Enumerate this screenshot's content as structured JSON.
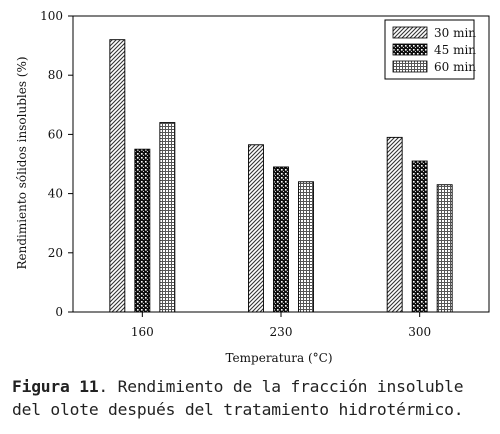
{
  "chart_data": {
    "type": "bar",
    "xlabel": "Temperatura (°C)",
    "ylabel": "Rendimiento sólidos insolubles (%)",
    "ylim": [
      0,
      100
    ],
    "yticks": [
      0,
      20,
      40,
      60,
      80,
      100
    ],
    "categories": [
      "160",
      "230",
      "300"
    ],
    "series": [
      {
        "name": "30 min",
        "values": [
          92,
          56.5,
          59
        ],
        "pattern": "diagonal-hatch",
        "color": "#555555"
      },
      {
        "name": "45 min",
        "values": [
          55,
          49,
          51
        ],
        "pattern": "crosshatch-dense",
        "color": "#111111"
      },
      {
        "name": "60 min",
        "values": [
          64,
          44,
          43
        ],
        "pattern": "fine-grid",
        "color": "#777777"
      }
    ],
    "legend_position": "top-right",
    "grid": false
  },
  "caption": {
    "label": "Figura 11",
    "text": ". Rendimiento de la fracción insoluble del olote después del tratamiento hidrotérmico."
  }
}
